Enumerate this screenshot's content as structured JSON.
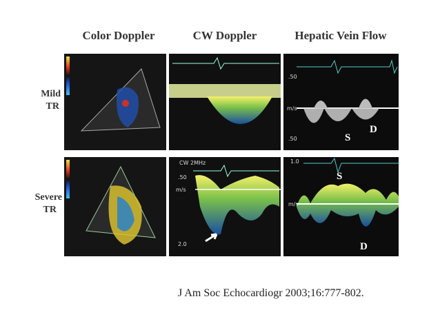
{
  "headers": [
    "Color Doppler",
    "CW Doppler",
    "Hepatic Vein Flow"
  ],
  "rows": [
    {
      "label": [
        "Mild",
        "TR"
      ],
      "hepatic": {
        "scale_top": ".50",
        "unit": "m/s",
        "scale_bottom": ".50",
        "s_wave": "S",
        "d_wave": "D"
      }
    },
    {
      "label": [
        "Severe",
        "TR"
      ],
      "cw": {
        "setting": "CW 2MHz",
        "scale_top": ".50",
        "unit": "m/s",
        "scale_bottom": "2.0"
      },
      "hepatic": {
        "scale_top": "1.0",
        "unit": "m/s",
        "s_wave": "S",
        "d_wave": "D"
      }
    }
  ],
  "citation": "J Am Soc Echocardiogr 2003;16:777-802."
}
